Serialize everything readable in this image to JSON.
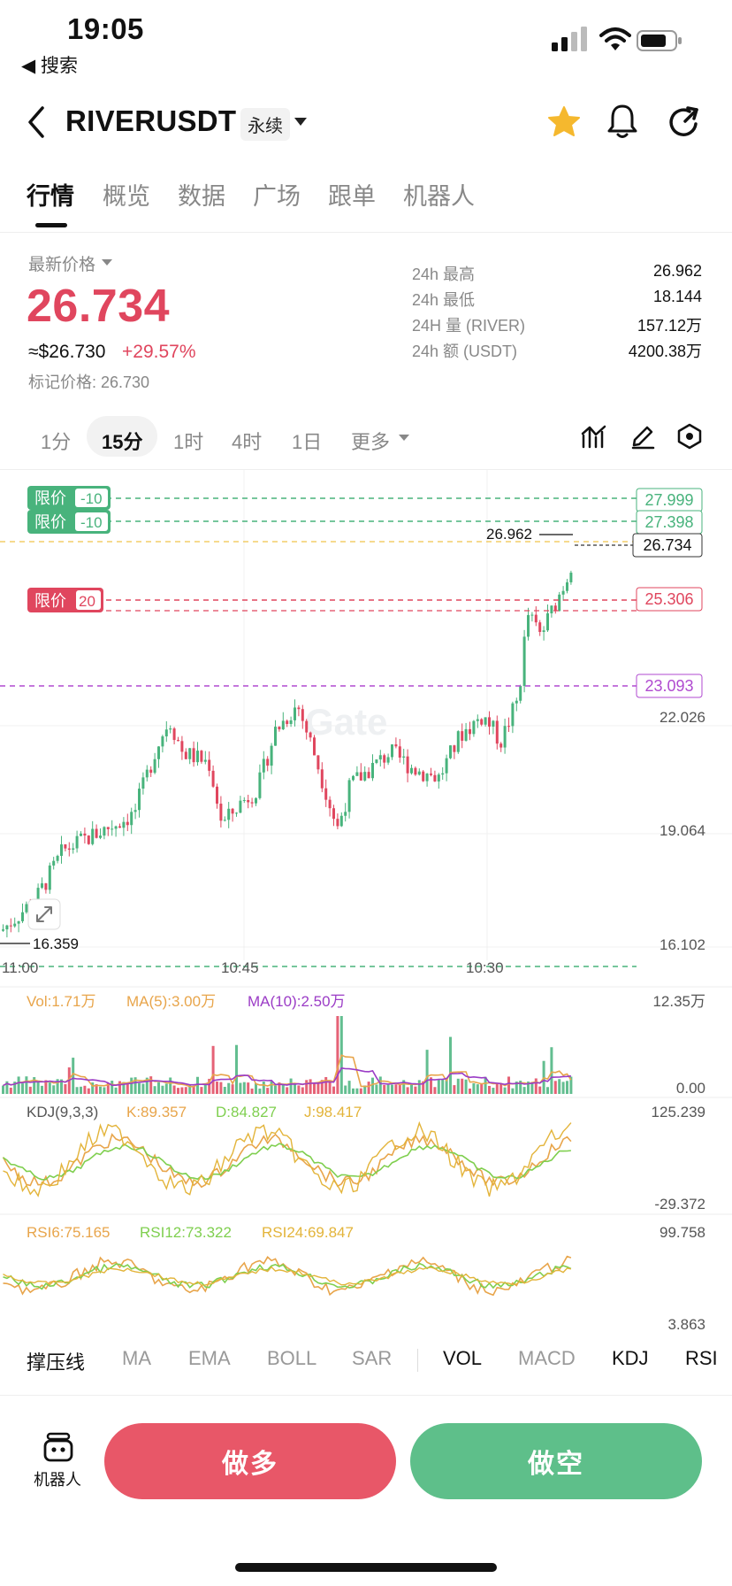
{
  "status_bar": {
    "time": "19:05",
    "back_label": "◀ 搜索"
  },
  "header": {
    "pair": "RIVERUSDT",
    "contract_type": "永续"
  },
  "tabs": [
    {
      "label": "行情",
      "active": true
    },
    {
      "label": "概览"
    },
    {
      "label": "数据"
    },
    {
      "label": "广场"
    },
    {
      "label": "跟单"
    },
    {
      "label": "机器人"
    }
  ],
  "price": {
    "label": "最新价格",
    "last": "26.734",
    "usd": "≈$26.730",
    "change": "+29.57%",
    "mark": "标记价格: 26.730"
  },
  "stats": [
    {
      "label": "24h  最高",
      "value": "26.962"
    },
    {
      "label": "24h  最低",
      "value": "18.144"
    },
    {
      "label": "24H  量 (RIVER)",
      "value": "157.12万"
    },
    {
      "label": "24h  额 (USDT)",
      "value": "4200.38万"
    }
  ],
  "intervals": [
    {
      "label": "1分"
    },
    {
      "label": "15分",
      "active": true
    },
    {
      "label": "1时"
    },
    {
      "label": "4时"
    },
    {
      "label": "1日"
    },
    {
      "label": "更多"
    }
  ],
  "chart": {
    "order_tags": [
      {
        "label": "限价",
        "qty": "-10",
        "price": "27.999",
        "color": "#48b37c"
      },
      {
        "label": "限价",
        "qty": "-10",
        "price": "27.398",
        "color": "#48b37c"
      },
      {
        "label": "限价",
        "qty": "20",
        "price": "25.306",
        "color": "#e0465e"
      }
    ],
    "hidden_line_price": "25.000",
    "alert_price": "23.093",
    "high_label": "26.962",
    "last_price_tag": "26.734",
    "low_label": "16.359",
    "y_ticks": [
      "22.026",
      "19.064",
      "16.102"
    ],
    "x_ticks": [
      "11:00",
      "10:45",
      "10:30"
    ],
    "watermark": "Gate"
  },
  "volume": {
    "vol": "Vol:1.71万",
    "ma5": "MA(5):3.00万",
    "ma10": "MA(10):2.50万",
    "max": "12.35万",
    "min": "0.00"
  },
  "kdj": {
    "title": "KDJ(9,3,3)",
    "k": "K:89.357",
    "d": "D:84.827",
    "j": "J:98.417",
    "max": "125.239",
    "min": "-29.372"
  },
  "rsi": {
    "r6": "RSI6:75.165",
    "r12": "RSI12:73.322",
    "r24": "RSI24:69.847",
    "max": "99.758",
    "min": "3.863"
  },
  "indicators": [
    {
      "label": "撑压线",
      "dark": true
    },
    {
      "label": "MA"
    },
    {
      "label": "EMA"
    },
    {
      "label": "BOLL"
    },
    {
      "label": "SAR"
    },
    {
      "label": "VOL",
      "dark": true
    },
    {
      "label": "MACD"
    },
    {
      "label": "KDJ",
      "dark": true
    },
    {
      "label": "RSI",
      "dark": true
    }
  ],
  "actions": {
    "robot": "机器人",
    "long": "做多",
    "short": "做空"
  },
  "colors": {
    "up": "#48b37c",
    "down": "#e0465e",
    "star": "#f5b82e"
  }
}
